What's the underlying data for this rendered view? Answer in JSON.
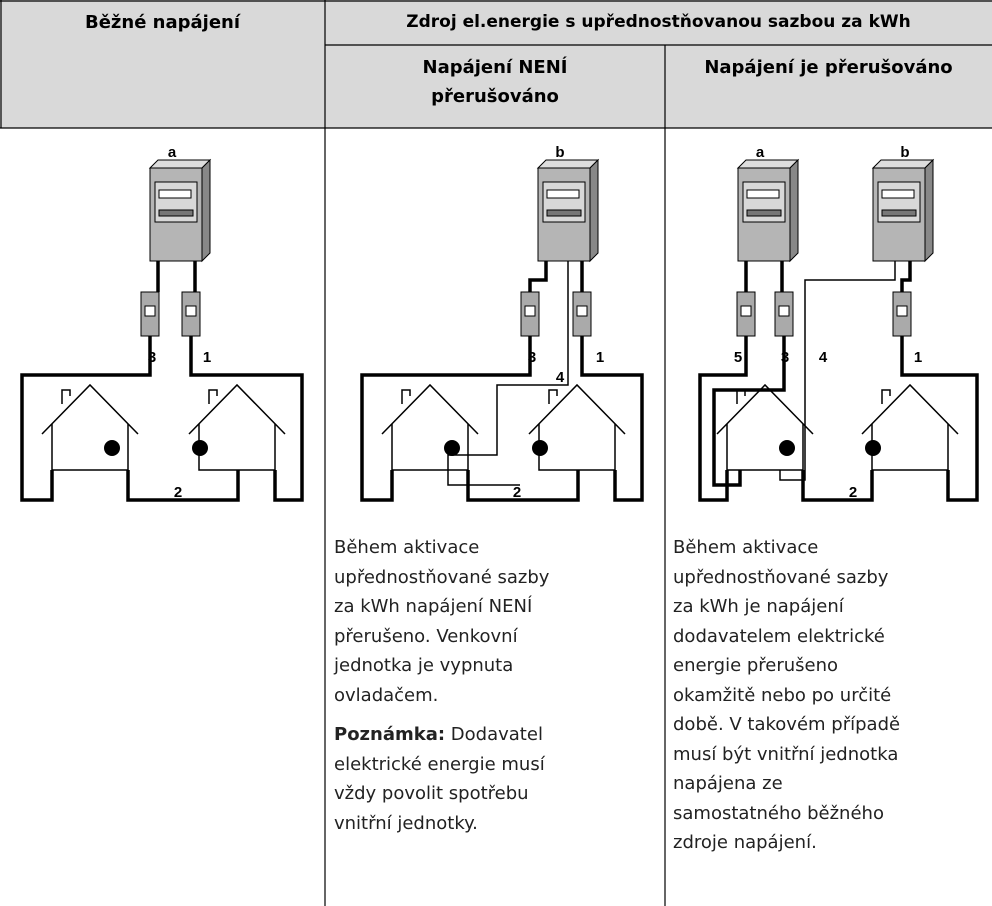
{
  "table": {
    "header": {
      "col1": "Běžné napájení",
      "group": "Zdroj el.energie s upřednostňovanou sazbou za kWh",
      "col2": "Napájení NENÍ přerušováno",
      "col3": "Napájení je přerušováno"
    },
    "diagrams": [
      {
        "meters": [
          "a"
        ],
        "wires": [
          "3",
          "1",
          "2"
        ]
      },
      {
        "meters": [
          "b"
        ],
        "wires": [
          "3",
          "1",
          "4",
          "2"
        ]
      },
      {
        "meters": [
          "a",
          "b"
        ],
        "wires": [
          "5",
          "3",
          "4",
          "1",
          "2"
        ]
      }
    ],
    "col2_text": {
      "p1": [
        "Během aktivace",
        "upřednostňované sazby",
        "za kWh napájení NENÍ",
        "přerušeno. Venkovní",
        "jednotka je vypnuta",
        "ovladačem."
      ],
      "note_label": "Poznámka:",
      "p2": [
        " Dodavatel",
        "elektrické energie musí",
        "vždy povolit spotřebu",
        "vnitřní jednotky."
      ]
    },
    "col3_text": [
      "Během aktivace",
      "upřednostňované sazby",
      "za kWh je napájení",
      "dodavatelem elektrické",
      "energie přerušeno",
      "okamžitě nebo po určité",
      "době. V takovém případě",
      "musí být vnitřní jednotka",
      "napájena ze",
      "samostatného běžného",
      "zdroje napájení."
    ]
  }
}
